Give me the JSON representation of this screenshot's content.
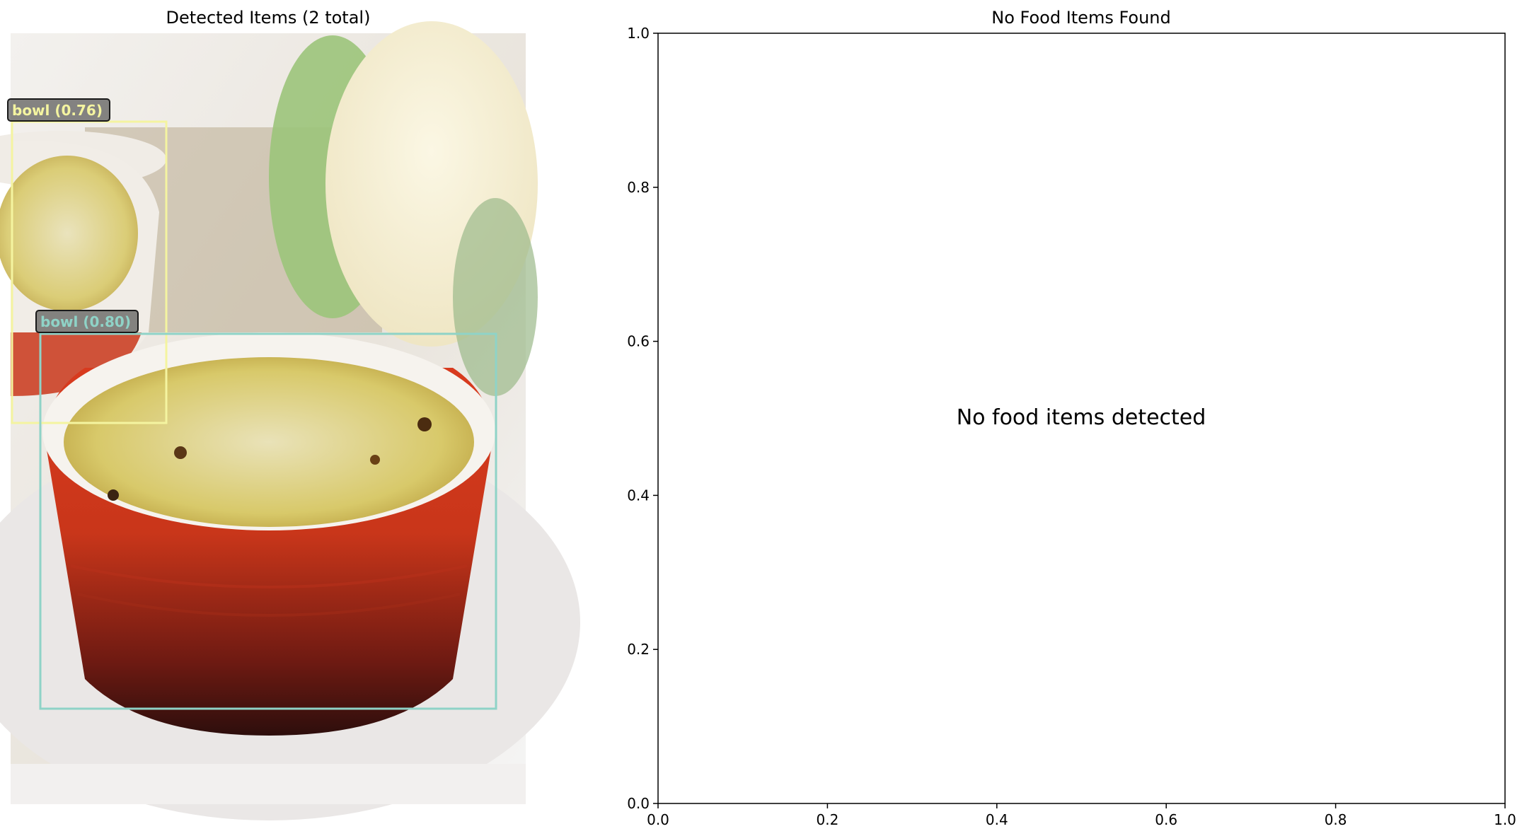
{
  "chart_data": [
    {
      "type": "image",
      "title": "Detected Items (2 total)",
      "detections": [
        {
          "label": "bowl (0.76)",
          "color": "#f4f4a0"
        },
        {
          "label": "bowl (0.80)",
          "color": "#8fd3c7"
        }
      ]
    },
    {
      "type": "scatter",
      "title": "No Food Items Found",
      "message": "No food items detected",
      "xlim": [
        0,
        1
      ],
      "ylim": [
        0,
        1
      ],
      "xticks": [
        "0.0",
        "0.2",
        "0.4",
        "0.6",
        "0.8",
        "1.0"
      ],
      "yticks": [
        "0.0",
        "0.2",
        "0.4",
        "0.6",
        "0.8",
        "1.0"
      ],
      "grid": false,
      "series": []
    }
  ]
}
